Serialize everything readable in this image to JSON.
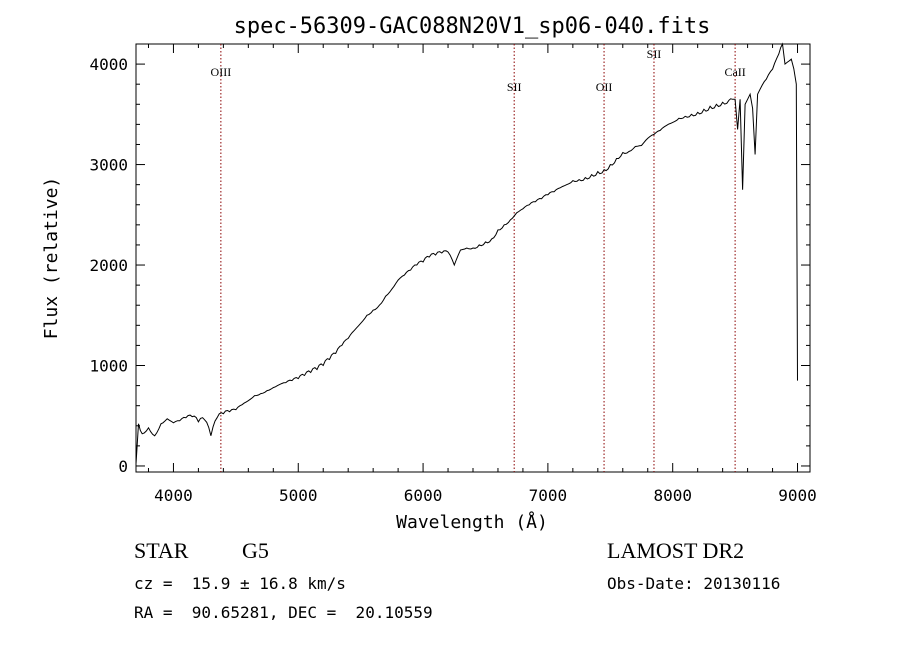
{
  "chart_data": {
    "type": "line",
    "title": "spec-56309-GAC088N20V1_sp06-040.fits",
    "xlabel": "Wavelength (Å)",
    "ylabel": "Flux (relative)",
    "xlim": [
      3700,
      9100
    ],
    "ylim": [
      -60,
      4200
    ],
    "xticks": [
      4000,
      5000,
      6000,
      7000,
      8000,
      9000
    ],
    "yticks": [
      0,
      1000,
      2000,
      3000,
      4000
    ],
    "grid": false,
    "series": [
      {
        "color": "#000000",
        "x": [
          3700,
          3720,
          3750,
          3800,
          3850,
          3900,
          3950,
          4000,
          4050,
          4100,
          4150,
          4200,
          4250,
          4300,
          4350,
          4400,
          4450,
          4500,
          4550,
          4600,
          4650,
          4700,
          4750,
          4800,
          4850,
          4900,
          4950,
          5000,
          5050,
          5100,
          5150,
          5200,
          5250,
          5300,
          5350,
          5400,
          5450,
          5500,
          5550,
          5600,
          5650,
          5700,
          5750,
          5800,
          5850,
          5900,
          5950,
          6000,
          6050,
          6100,
          6150,
          6200,
          6250,
          6300,
          6350,
          6400,
          6450,
          6500,
          6550,
          6600,
          6650,
          6700,
          6750,
          6800,
          6850,
          6900,
          6950,
          7000,
          7050,
          7100,
          7150,
          7200,
          7250,
          7300,
          7350,
          7400,
          7450,
          7500,
          7550,
          7600,
          7650,
          7700,
          7750,
          7800,
          7850,
          7900,
          7950,
          8000,
          8050,
          8100,
          8150,
          8200,
          8250,
          8300,
          8350,
          8400,
          8450,
          8480,
          8500,
          8520,
          8540,
          8560,
          8580,
          8600,
          8620,
          8640,
          8660,
          8680,
          8700,
          8750,
          8800,
          8850,
          8880,
          8900,
          8950,
          8990,
          9000
        ],
        "y": [
          20,
          420,
          320,
          380,
          300,
          420,
          470,
          430,
          450,
          480,
          490,
          440,
          460,
          300,
          480,
          520,
          540,
          560,
          610,
          650,
          700,
          720,
          750,
          780,
          810,
          830,
          850,
          870,
          900,
          930,
          960,
          1000,
          1060,
          1120,
          1200,
          1270,
          1350,
          1420,
          1500,
          1550,
          1600,
          1690,
          1760,
          1850,
          1900,
          1950,
          2000,
          2030,
          2080,
          2100,
          2120,
          2130,
          2000,
          2150,
          2170,
          2170,
          2200,
          2230,
          2260,
          2350,
          2400,
          2450,
          2520,
          2560,
          2600,
          2630,
          2660,
          2700,
          2730,
          2770,
          2800,
          2840,
          2850,
          2870,
          2900,
          2930,
          2950,
          3000,
          3060,
          3120,
          3130,
          3180,
          3190,
          3260,
          3300,
          3340,
          3390,
          3420,
          3460,
          3480,
          3500,
          3520,
          3550,
          3580,
          3600,
          3620,
          3640,
          3650,
          3650,
          3350,
          3650,
          2750,
          3600,
          3650,
          3700,
          3560,
          3100,
          3700,
          3750,
          3850,
          3950,
          4100,
          4200,
          4000,
          4050,
          3800,
          850
        ]
      }
    ],
    "lines": [
      {
        "label": "OIII",
        "x": 4380,
        "label_y": 3880
      },
      {
        "label": "SII",
        "x": 6730,
        "label_y": 3730
      },
      {
        "label": "OII",
        "x": 7450,
        "label_y": 3730
      },
      {
        "label": "SII",
        "x": 7850,
        "label_y": 4060
      },
      {
        "label": "CaII",
        "x": 8500,
        "label_y": 3880
      }
    ],
    "line_color": "#8b0000"
  },
  "info": {
    "object_class": "STAR",
    "subclass": "G5",
    "redshift": "cz =  15.9 ± 16.8 km/s",
    "coords": "RA =  90.65281, DEC =  20.10559",
    "survey": "LAMOST DR2",
    "obs_date": "Obs-Date: 20130116"
  }
}
